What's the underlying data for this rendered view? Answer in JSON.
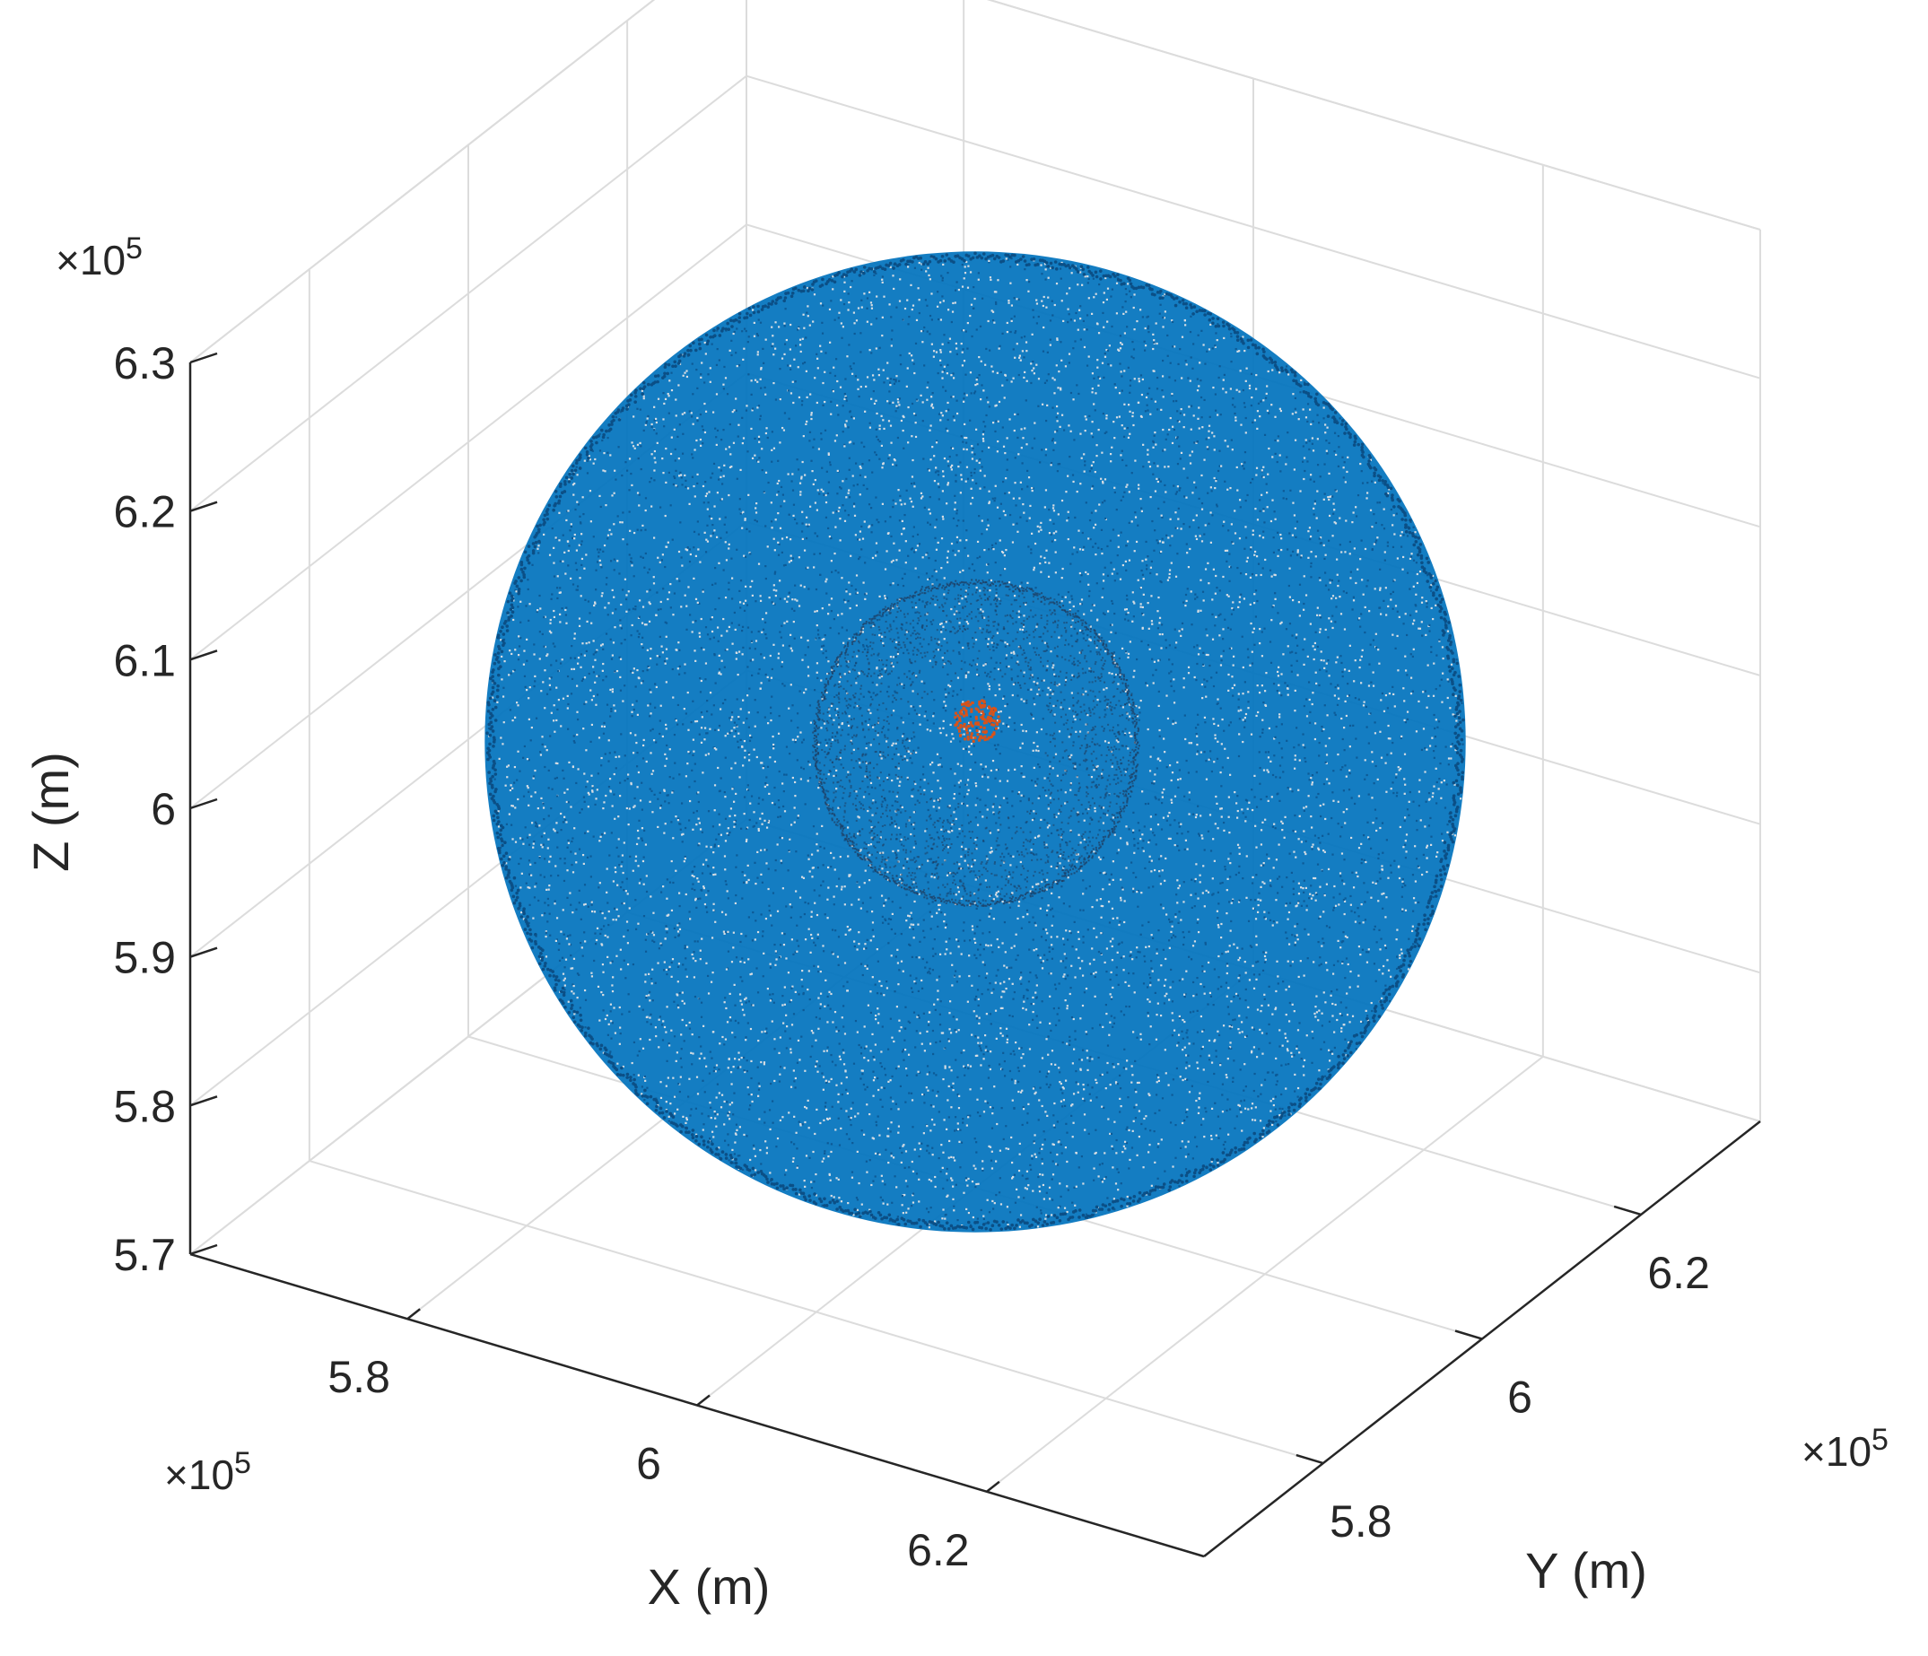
{
  "chart_data": {
    "type": "scatter",
    "projection": "3d",
    "title": "",
    "xlabel": "X (m)",
    "ylabel": "Y (m)",
    "zlabel": "Z (m)",
    "xlim": [
      565000,
      635000
    ],
    "ylim": [
      565000,
      635000
    ],
    "zlim": [
      570000,
      630000
    ],
    "x_ticks": [
      {
        "value": 580000,
        "label": "5.8"
      },
      {
        "value": 600000,
        "label": "6"
      },
      {
        "value": 620000,
        "label": "6.2"
      }
    ],
    "y_ticks": [
      {
        "value": 580000,
        "label": "5.8"
      },
      {
        "value": 600000,
        "label": "6"
      },
      {
        "value": 620000,
        "label": "6.2"
      }
    ],
    "z_ticks": [
      {
        "value": 570000,
        "label": "5.7"
      },
      {
        "value": 580000,
        "label": "5.8"
      },
      {
        "value": 590000,
        "label": "5.9"
      },
      {
        "value": 600000,
        "label": "6"
      },
      {
        "value": 610000,
        "label": "6.1"
      },
      {
        "value": 620000,
        "label": "6.2"
      },
      {
        "value": 630000,
        "label": "6.3"
      }
    ],
    "x_exponent": {
      "times": "×10",
      "power": "5"
    },
    "y_exponent": {
      "times": "×10",
      "power": "5"
    },
    "z_exponent": {
      "times": "×10",
      "power": "5"
    },
    "grid": true,
    "series": [
      {
        "shape": "sphere",
        "center": [
          600000,
          600000,
          600000
        ],
        "radius": 33000,
        "color": "#0072BD"
      },
      {
        "shape": "sphere",
        "center": [
          600000,
          600000,
          600000
        ],
        "radius": 11000,
        "color": "#1f3a5c"
      },
      {
        "shape": "cluster",
        "center": [
          600000,
          600000,
          601500
        ],
        "radius": 1200,
        "color": "#D95319"
      }
    ]
  }
}
